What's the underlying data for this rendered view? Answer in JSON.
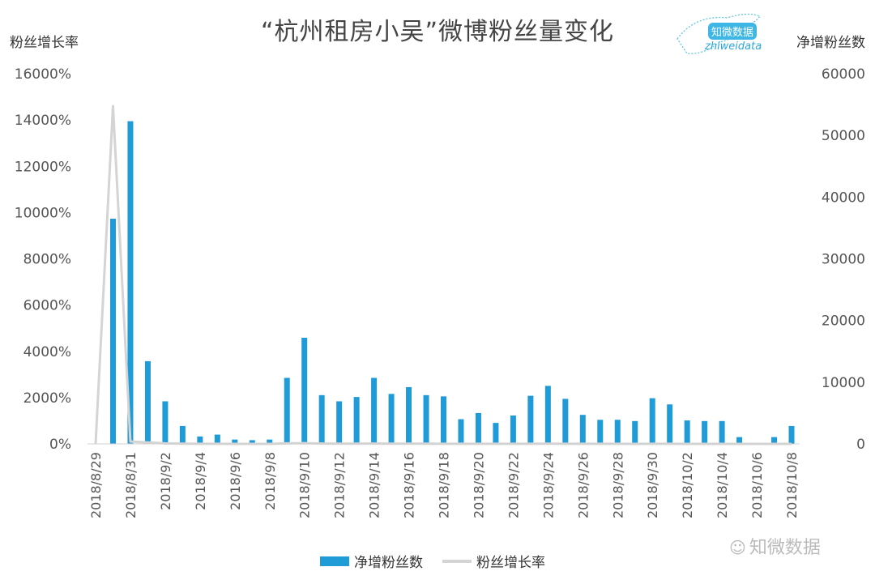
{
  "title": "“杭州租房小吴”微博粉丝量变化",
  "left_axis_title": "粉丝增长率",
  "right_axis_title": "净增粉丝数",
  "logo": {
    "zh": "知微数据",
    "en": "zhiweidata"
  },
  "watermark": "知微数据",
  "legend": {
    "bar": "净增粉丝数",
    "line": "粉丝增长率"
  },
  "chart_data": {
    "type": "bar",
    "categories": [
      "2018/8/29",
      "2018/8/30",
      "2018/8/31",
      "2018/9/1",
      "2018/9/2",
      "2018/9/3",
      "2018/9/4",
      "2018/9/5",
      "2018/9/6",
      "2018/9/7",
      "2018/9/8",
      "2018/9/9",
      "2018/9/10",
      "2018/9/11",
      "2018/9/12",
      "2018/9/13",
      "2018/9/14",
      "2018/9/15",
      "2018/9/16",
      "2018/9/17",
      "2018/9/18",
      "2018/9/19",
      "2018/9/20",
      "2018/9/21",
      "2018/9/22",
      "2018/9/23",
      "2018/9/24",
      "2018/9/25",
      "2018/9/26",
      "2018/9/27",
      "2018/9/28",
      "2018/9/29",
      "2018/9/30",
      "2018/10/1",
      "2018/10/2",
      "2018/10/3",
      "2018/10/4",
      "2018/10/5",
      "2018/10/6",
      "2018/10/7",
      "2018/10/8"
    ],
    "x_tick_labels": [
      "2018/8/29",
      "2018/8/31",
      "2018/9/2",
      "2018/9/4",
      "2018/9/6",
      "2018/9/8",
      "2018/9/10",
      "2018/9/12",
      "2018/9/14",
      "2018/9/16",
      "2018/9/18",
      "2018/9/20",
      "2018/9/22",
      "2018/9/24",
      "2018/9/26",
      "2018/9/28",
      "2018/9/30",
      "2018/10/2",
      "2018/10/4",
      "2018/10/6",
      "2018/10/8"
    ],
    "series": [
      {
        "name": "净增粉丝数",
        "axis": "right",
        "color": "#1f9bd7",
        "values": [
          0,
          36500,
          52300,
          13400,
          6900,
          2900,
          1200,
          1500,
          700,
          600,
          700,
          10700,
          17200,
          7900,
          6900,
          7600,
          10700,
          8100,
          9200,
          7900,
          7700,
          4000,
          5000,
          3400,
          4600,
          7800,
          9400,
          7300,
          4700,
          3900,
          3900,
          3700,
          7400,
          6400,
          3800,
          3700,
          3700,
          1100,
          0,
          1100,
          2900
        ]
      },
      {
        "name": "粉丝增长率",
        "axis": "left",
        "type": "line",
        "color": "#d4d4d4",
        "values": [
          0,
          14600,
          100,
          60,
          20,
          8,
          4,
          4,
          2,
          2,
          2,
          20,
          30,
          12,
          9,
          9,
          12,
          8,
          9,
          7,
          6,
          3,
          4,
          3,
          3,
          6,
          7,
          5,
          3,
          3,
          3,
          2,
          5,
          4,
          2,
          2,
          2,
          1,
          0,
          1,
          1
        ]
      }
    ],
    "ylim_left": [
      0,
      16000
    ],
    "yticks_left": [
      "0%",
      "2000%",
      "4000%",
      "6000%",
      "8000%",
      "10000%",
      "12000%",
      "14000%",
      "16000%"
    ],
    "ylim_right": [
      0,
      60000
    ],
    "yticks_right": [
      "0",
      "10000",
      "20000",
      "30000",
      "40000",
      "50000",
      "60000"
    ],
    "grid": false,
    "legend_position": "bottom"
  }
}
